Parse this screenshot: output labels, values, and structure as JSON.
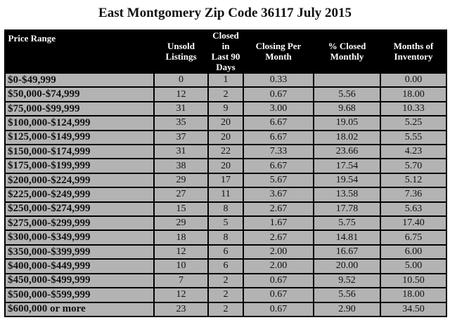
{
  "title": "East Montgomery Zip Code 36117 July 2015",
  "table": {
    "header": [
      "Price Range",
      "Unsold\nListings",
      "Closed in\nLast 90 Days",
      "Closing Per\nMonth",
      "% Closed\nMonthly",
      "Months of\nInventory"
    ],
    "rows": [
      [
        "$0-$49,999",
        "0",
        "1",
        "0.33",
        null,
        "0.00"
      ],
      [
        "$50,000-$74,999",
        "12",
        "2",
        "0.67",
        "5.56",
        "18.00"
      ],
      [
        "$75,000-$99,999",
        "31",
        "9",
        "3.00",
        "9.68",
        "10.33"
      ],
      [
        "$100,000-$124,999",
        "35",
        "20",
        "6.67",
        "19.05",
        "5.25"
      ],
      [
        "$125,000-$149,999",
        "37",
        "20",
        "6.67",
        "18.02",
        "5.55"
      ],
      [
        "$150,000-$174,999",
        "31",
        "22",
        "7.33",
        "23.66",
        "4.23"
      ],
      [
        "$175,000-$199,999",
        "38",
        "20",
        "6.67",
        "17.54",
        "5.70"
      ],
      [
        "$200,000-$224,999",
        "29",
        "17",
        "5.67",
        "19.54",
        "5.12"
      ],
      [
        "$225,000-$249,999",
        "27",
        "11",
        "3.67",
        "13.58",
        "7.36"
      ],
      [
        "$250,000-$274,999",
        "15",
        "8",
        "2.67",
        "17.78",
        "5.63"
      ],
      [
        "$275,000-$299,999",
        "29",
        "5",
        "1.67",
        "5.75",
        "17.40"
      ],
      [
        "$300,000-$349,999",
        "18",
        "8",
        "2.67",
        "14.81",
        "6.75"
      ],
      [
        "$350,000-$399,999",
        "12",
        "6",
        "2.00",
        "16.67",
        "6.00"
      ],
      [
        "$400,000-$449,999",
        "10",
        "6",
        "2.00",
        "20.00",
        "5.00"
      ],
      [
        "$450,000-$499,999",
        "7",
        "2",
        "0.67",
        "9.52",
        "10.50"
      ],
      [
        "$500,000-$599,999",
        "12",
        "2",
        "0.67",
        "5.56",
        "18.00"
      ],
      [
        "$600,000 or more",
        "23",
        "2",
        "0.67",
        "2.90",
        "34.50"
      ]
    ]
  }
}
